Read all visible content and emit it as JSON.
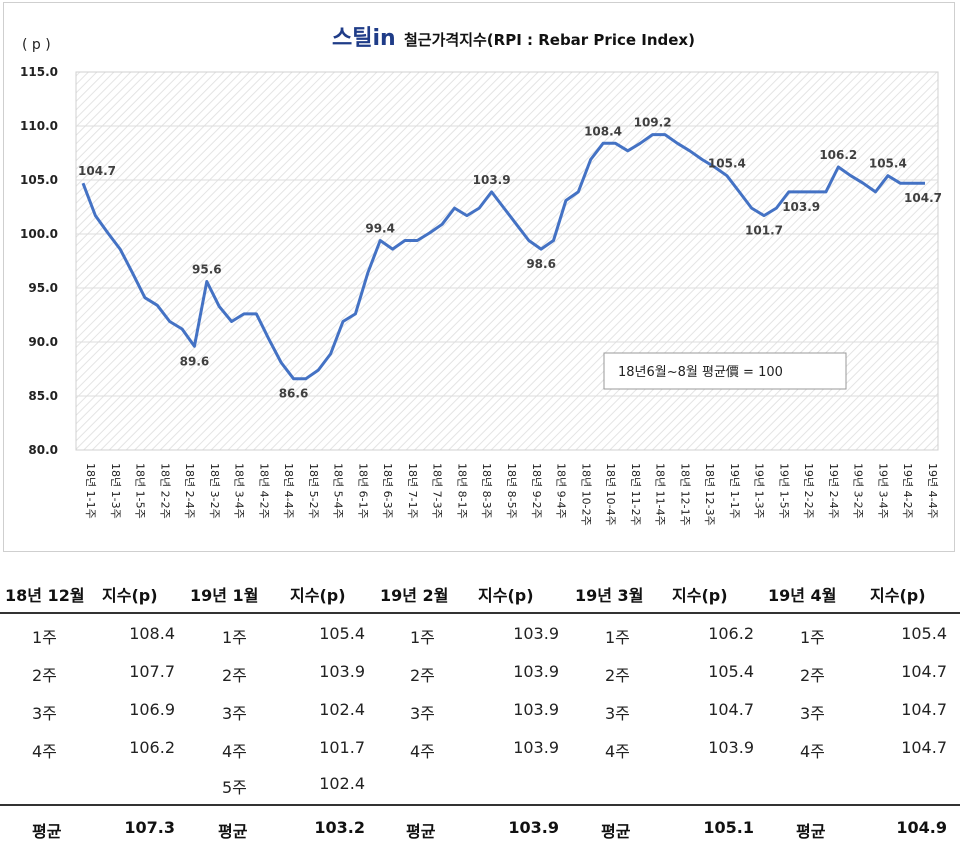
{
  "chart_data": {
    "type": "line",
    "title_logo": "스틸in",
    "title": "철근가격지수(RPI : Rebar Price Index)",
    "unit_label": "( p )",
    "ylim": [
      80,
      115
    ],
    "yticks": [
      "80.0",
      "85.0",
      "90.0",
      "95.0",
      "100.0",
      "105.0",
      "110.0",
      "115.0"
    ],
    "note": "18년6월~8월 평균價 = 100",
    "line_color": "#4472c4",
    "x": [
      "18년 1-1주",
      "",
      "18년 1-3주",
      "",
      "18년 1-5주",
      "",
      "18년 2-2주",
      "",
      "18년 2-4주",
      "",
      "18년 3-2주",
      "",
      "18년 3-4주",
      "",
      "18년 4-2주",
      "",
      "18년 4-4주",
      "",
      "18년 5-2주",
      "",
      "18년 5-4주",
      "",
      "18년 6-1주",
      "",
      "18년 6-3주",
      "",
      "18년 7-1주",
      "",
      "18년 7-3주",
      "",
      "18년 8-1주",
      "",
      "18년 8-3주",
      "",
      "18년 8-5주",
      "",
      "18년 9-2주",
      "",
      "18년 9-4주",
      "",
      "18년 10-2주",
      "",
      "18년 10-4주",
      "",
      "18년 11-2주",
      "",
      "18년 11-4주",
      "",
      "18년 12-1주",
      "",
      "18년 12-3주",
      "",
      "19년 1-1주",
      "",
      "19년 1-3주",
      "",
      "19년 1-5주",
      "",
      "19년 2-2주",
      "",
      "19년 2-4주",
      "",
      "19년 3-2주",
      "",
      "19년 3-4주",
      "",
      "19년 4-2주",
      "",
      "19년 4-4주"
    ],
    "values": [
      104.7,
      101.7,
      100.1,
      98.6,
      96.4,
      94.1,
      93.4,
      91.9,
      91.2,
      89.6,
      95.6,
      93.3,
      91.9,
      92.6,
      92.6,
      90.3,
      88.1,
      86.6,
      86.6,
      87.4,
      88.9,
      91.9,
      92.6,
      96.4,
      99.4,
      98.6,
      99.4,
      99.4,
      100.1,
      100.9,
      102.4,
      101.7,
      102.4,
      103.9,
      102.4,
      100.9,
      99.4,
      98.6,
      99.4,
      103.1,
      103.9,
      106.9,
      108.4,
      108.4,
      107.7,
      108.4,
      109.2,
      109.2,
      108.4,
      107.7,
      106.9,
      106.2,
      105.4,
      103.9,
      102.4,
      101.7,
      102.4,
      103.9,
      103.9,
      103.9,
      103.9,
      106.2,
      105.4,
      104.7,
      103.9,
      105.4,
      104.7,
      104.7,
      104.7
    ],
    "labels": [
      {
        "i": 0,
        "text": "104.7",
        "pos": "above"
      },
      {
        "i": 9,
        "text": "89.6",
        "pos": "below"
      },
      {
        "i": 10,
        "text": "95.6",
        "pos": "above"
      },
      {
        "i": 17,
        "text": "86.6",
        "pos": "below"
      },
      {
        "i": 24,
        "text": "99.4",
        "pos": "above"
      },
      {
        "i": 33,
        "text": "103.9",
        "pos": "above"
      },
      {
        "i": 37,
        "text": "98.6",
        "pos": "below"
      },
      {
        "i": 42,
        "text": "108.4",
        "pos": "above"
      },
      {
        "i": 46,
        "text": "109.2",
        "pos": "above"
      },
      {
        "i": 52,
        "text": "105.4",
        "pos": "above"
      },
      {
        "i": 55,
        "text": "101.7",
        "pos": "below"
      },
      {
        "i": 58,
        "text": "103.9",
        "pos": "below"
      },
      {
        "i": 61,
        "text": "106.2",
        "pos": "above"
      },
      {
        "i": 65,
        "text": "105.4",
        "pos": "above"
      },
      {
        "i": 68,
        "text": "104.7",
        "pos": "below"
      }
    ]
  },
  "table": {
    "headers": [
      {
        "month": "18년 12월",
        "index": "지수(p)"
      },
      {
        "month": "19년 1월",
        "index": "지수(p)"
      },
      {
        "month": "19년 2월",
        "index": "지수(p)"
      },
      {
        "month": "19년 3월",
        "index": "지수(p)"
      },
      {
        "month": "19년 4월",
        "index": "지수(p)"
      }
    ],
    "columns": [
      {
        "rows": [
          [
            "1주",
            "108.4"
          ],
          [
            "2주",
            "107.7"
          ],
          [
            "3주",
            "106.9"
          ],
          [
            "4주",
            "106.2"
          ]
        ],
        "avg_label": "평균",
        "avg": "107.3"
      },
      {
        "rows": [
          [
            "1주",
            "105.4"
          ],
          [
            "2주",
            "103.9"
          ],
          [
            "3주",
            "102.4"
          ],
          [
            "4주",
            "101.7"
          ],
          [
            "5주",
            "102.4"
          ]
        ],
        "avg_label": "평균",
        "avg": "103.2"
      },
      {
        "rows": [
          [
            "1주",
            "103.9"
          ],
          [
            "2주",
            "103.9"
          ],
          [
            "3주",
            "103.9"
          ],
          [
            "4주",
            "103.9"
          ]
        ],
        "avg_label": "평균",
        "avg": "103.9"
      },
      {
        "rows": [
          [
            "1주",
            "106.2"
          ],
          [
            "2주",
            "105.4"
          ],
          [
            "3주",
            "104.7"
          ],
          [
            "4주",
            "103.9"
          ]
        ],
        "avg_label": "평균",
        "avg": "105.1"
      },
      {
        "rows": [
          [
            "1주",
            "105.4"
          ],
          [
            "2주",
            "104.7"
          ],
          [
            "3주",
            "104.7"
          ],
          [
            "4주",
            "104.7"
          ]
        ],
        "avg_label": "평균",
        "avg": "104.9"
      }
    ]
  }
}
